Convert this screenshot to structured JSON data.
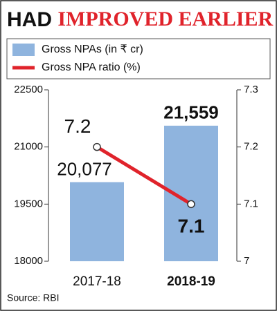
{
  "chart_data": {
    "type": "bar-line",
    "title": {
      "lead": "HAD",
      "rest": "IMPROVED EARLIER"
    },
    "categories": [
      "2017-18",
      "2018-19"
    ],
    "series": [
      {
        "name": "Gross NPAs (in ₹ cr)",
        "color": "#8fb4de",
        "type": "bar",
        "values": [
          20077,
          21559
        ],
        "value_labels": [
          "20,077",
          "21,559"
        ]
      },
      {
        "name": "Gross NPA ratio (%)",
        "color": "#e0232b",
        "type": "line",
        "axis": "y2",
        "values": [
          7.2,
          7.1
        ]
      }
    ],
    "ylim": [
      18000,
      22500
    ],
    "yticks": [
      18000,
      19500,
      21000,
      22500
    ],
    "y2lim": [
      7,
      7.3
    ],
    "y2ticks": [
      7,
      7.1,
      7.2,
      7.3
    ],
    "source": "Source: RBI"
  }
}
